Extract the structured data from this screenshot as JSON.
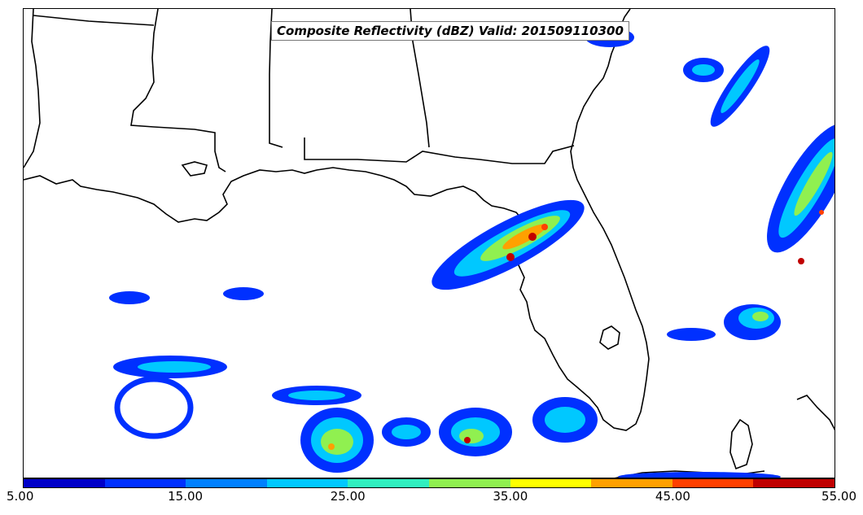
{
  "map": {
    "title": "Composite Reflectivity (dBZ) Valid: 201509110300",
    "colors": {
      "c5": "#0000c8",
      "c10": "#0030ff",
      "c15": "#0080ff",
      "c20": "#00c8ff",
      "c25": "#30f0c0",
      "c30": "#90f050",
      "c35": "#ffff00",
      "c40": "#ffa000",
      "c45": "#ff4000",
      "c50": "#c00000",
      "coast": "#000000"
    }
  },
  "colorbar": {
    "segment_colors": [
      "#0000c8",
      "#0030ff",
      "#0080ff",
      "#00c8ff",
      "#30f0c0",
      "#90f050",
      "#ffff00",
      "#ffa000",
      "#ff4000",
      "#c00000"
    ],
    "tick_labels": [
      "5.00",
      "15.00",
      "25.00",
      "35.00",
      "45.00",
      "55.00"
    ],
    "range": [
      5,
      55
    ]
  }
}
